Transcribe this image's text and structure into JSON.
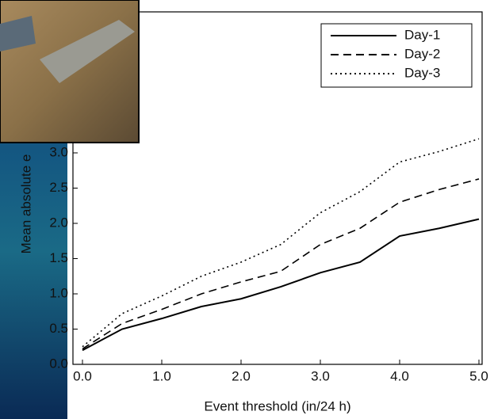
{
  "chart_data": {
    "type": "line",
    "x_label": "Event threshold (in/24 h)",
    "y_label": "Mean absolute e",
    "x": [
      0,
      0.5,
      1,
      1.5,
      2,
      2.5,
      3,
      3.5,
      4,
      4.5,
      5
    ],
    "series": [
      {
        "name": "Day-1",
        "color": "#000000",
        "dash": "solid",
        "values": [
          0.2,
          0.5,
          0.65,
          0.82,
          0.93,
          1.1,
          1.3,
          1.45,
          1.82,
          1.93,
          2.06
        ]
      },
      {
        "name": "Day-2",
        "color": "#000000",
        "dash": "dashed",
        "values": [
          0.22,
          0.58,
          0.78,
          1.0,
          1.17,
          1.32,
          1.7,
          1.93,
          2.3,
          2.48,
          2.63
        ]
      },
      {
        "name": "Day-3",
        "color": "#000000",
        "dash": "dotted",
        "values": [
          0.25,
          0.72,
          0.97,
          1.25,
          1.45,
          1.7,
          2.15,
          2.45,
          2.87,
          3.02,
          3.2
        ]
      }
    ],
    "xlim": [
      -0.12,
      5.04
    ],
    "ylim": [
      0,
      5
    ],
    "xticks": [
      {
        "value": 0,
        "label": "0.0"
      },
      {
        "value": 1,
        "label": "1.0"
      },
      {
        "value": 2,
        "label": "2.0"
      },
      {
        "value": 3,
        "label": "3.0"
      },
      {
        "value": 4,
        "label": "4.0"
      },
      {
        "value": 5,
        "label": "5.0"
      }
    ],
    "yticks": [
      {
        "value": 0,
        "label": "0.0"
      },
      {
        "value": 0.5,
        "label": "0.5"
      },
      {
        "value": 1,
        "label": "1.0"
      },
      {
        "value": 1.5,
        "label": "1.5"
      },
      {
        "value": 2,
        "label": "2.0"
      },
      {
        "value": 2.5,
        "label": "2.5"
      },
      {
        "value": 3,
        "label": "3.0"
      }
    ],
    "legend": "top-right"
  }
}
